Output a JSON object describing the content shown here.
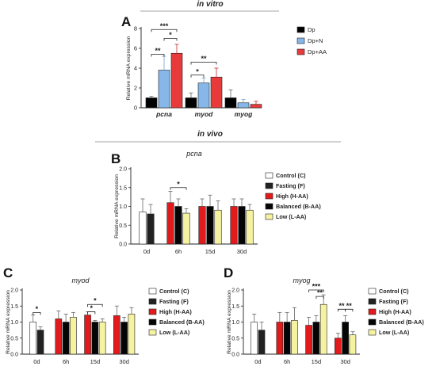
{
  "sections": {
    "in_vitro": "in vitro",
    "in_vivo": "in vivo"
  },
  "colors": {
    "Dp": "#000000",
    "Dp+N": "#86B7E8",
    "Dp+AA": "#E8393B",
    "Control (C)": "#FFFFFF",
    "Fasting (F)": "#222222",
    "High (H-AA)": "#E31A1C",
    "Balanced (B-AA)": "#050505",
    "Low (L-AA)": "#F6F3A0"
  },
  "chart_data": [
    {
      "panel": "A",
      "type": "bar",
      "title": "",
      "ylabel": "Relative mRNA expression",
      "xlabel": "",
      "categories": [
        "pcna",
        "myod",
        "myog"
      ],
      "ylim": [
        0,
        8
      ],
      "yticks": [
        0,
        2,
        4,
        6,
        8
      ],
      "legend_position": "right",
      "series": [
        {
          "name": "Dp",
          "values": [
            1.0,
            1.0,
            1.0
          ],
          "errors": [
            0.15,
            0.5,
            0.8
          ]
        },
        {
          "name": "Dp+N",
          "values": [
            3.8,
            2.5,
            0.5
          ],
          "errors": [
            1.4,
            0.5,
            0.35
          ]
        },
        {
          "name": "Dp+AA",
          "values": [
            5.5,
            3.1,
            0.35
          ],
          "errors": [
            0.9,
            0.9,
            0.3
          ]
        }
      ],
      "significance": [
        {
          "label": "***",
          "cat": 0,
          "from": 0,
          "to": 2,
          "level": 7.9
        },
        {
          "label": "*",
          "cat": 0,
          "from": 1,
          "to": 2,
          "level": 7.0
        },
        {
          "label": "**",
          "cat": 0,
          "from": 0,
          "to": 1,
          "level": 5.4
        },
        {
          "label": "**",
          "cat": 1,
          "from": 0,
          "to": 2,
          "level": 4.6
        },
        {
          "label": "*",
          "cat": 1,
          "from": 0,
          "to": 1,
          "level": 3.3
        }
      ]
    },
    {
      "panel": "B",
      "type": "bar",
      "title": "pcna",
      "ylabel": "Relative mRNA expression",
      "xlabel": "",
      "categories": [
        "0d",
        "6h",
        "15d",
        "30d"
      ],
      "ylim": [
        0,
        2.0
      ],
      "yticks": [
        0.0,
        0.5,
        1.0,
        1.5,
        2.0
      ],
      "legend_position": "right",
      "series": [
        {
          "name": "Control (C)",
          "values": [
            0.85,
            null,
            null,
            null
          ],
          "errors": [
            0.35,
            null,
            null,
            null
          ]
        },
        {
          "name": "Fasting (F)",
          "values": [
            0.8,
            null,
            null,
            null
          ],
          "errors": [
            0.25,
            null,
            null,
            null
          ]
        },
        {
          "name": "High (H-AA)",
          "values": [
            null,
            1.1,
            1.0,
            1.0
          ],
          "errors": [
            null,
            0.3,
            0.2,
            0.2
          ]
        },
        {
          "name": "Balanced (B-AA)",
          "values": [
            null,
            1.0,
            1.0,
            1.0
          ],
          "errors": [
            null,
            0.2,
            0.3,
            0.2
          ]
        },
        {
          "name": "Low (L-AA)",
          "values": [
            null,
            0.82,
            0.9,
            0.9
          ],
          "errors": [
            null,
            0.12,
            0.25,
            0.15
          ]
        }
      ],
      "significance": [
        {
          "label": "*",
          "cat": 1,
          "from": 2,
          "to": 4,
          "level": 1.5
        }
      ]
    },
    {
      "panel": "C",
      "type": "bar",
      "title": "myod",
      "ylabel": "Relative mRNA expression",
      "xlabel": "",
      "categories": [
        "0d",
        "6h",
        "15d",
        "30d"
      ],
      "ylim": [
        0,
        2.0
      ],
      "yticks": [
        0.0,
        0.5,
        1.0,
        1.5,
        2.0
      ],
      "legend_position": "right",
      "series": [
        {
          "name": "Control (C)",
          "values": [
            1.0,
            null,
            null,
            null
          ],
          "errors": [
            0.22,
            null,
            null,
            null
          ]
        },
        {
          "name": "Fasting (F)",
          "values": [
            0.75,
            null,
            null,
            null
          ],
          "errors": [
            0.1,
            null,
            null,
            null
          ]
        },
        {
          "name": "High (H-AA)",
          "values": [
            null,
            1.1,
            1.22,
            1.2
          ],
          "errors": [
            null,
            0.25,
            0.1,
            0.3
          ]
        },
        {
          "name": "Balanced (B-AA)",
          "values": [
            null,
            1.0,
            1.0,
            1.0
          ],
          "errors": [
            null,
            0.25,
            0.05,
            0.15
          ]
        },
        {
          "name": "Low (L-AA)",
          "values": [
            null,
            1.15,
            1.0,
            1.25
          ],
          "errors": [
            null,
            0.15,
            0.1,
            0.2
          ]
        }
      ],
      "significance": [
        {
          "label": "*",
          "cat": 0,
          "from": 0,
          "to": 1,
          "level": 1.3
        },
        {
          "label": "*",
          "cat": 2,
          "from": 2,
          "to": 4,
          "level": 1.55
        },
        {
          "label": "*",
          "cat": 2,
          "from": 2,
          "to": 3,
          "level": 1.32
        }
      ]
    },
    {
      "panel": "D",
      "type": "bar",
      "title": "myog",
      "ylabel": "Relative mRNA expression",
      "xlabel": "",
      "categories": [
        "0d",
        "6h",
        "15d",
        "30d"
      ],
      "ylim": [
        0,
        2.0
      ],
      "yticks": [
        0.0,
        0.5,
        1.0,
        1.5,
        2.0
      ],
      "legend_position": "right",
      "series": [
        {
          "name": "Control (C)",
          "values": [
            1.0,
            null,
            null,
            null
          ],
          "errors": [
            0.25,
            null,
            null,
            null
          ]
        },
        {
          "name": "Fasting (F)",
          "values": [
            0.75,
            null,
            null,
            null
          ],
          "errors": [
            0.25,
            null,
            null,
            null
          ]
        },
        {
          "name": "High (H-AA)",
          "values": [
            null,
            1.0,
            0.9,
            0.5
          ],
          "errors": [
            null,
            0.3,
            0.25,
            0.15
          ]
        },
        {
          "name": "Balanced (B-AA)",
          "values": [
            null,
            1.0,
            1.0,
            1.0
          ],
          "errors": [
            null,
            0.3,
            0.2,
            0.2
          ]
        },
        {
          "name": "Low (L-AA)",
          "values": [
            null,
            1.05,
            1.55,
            0.6
          ],
          "errors": [
            null,
            0.4,
            0.3,
            0.1
          ]
        }
      ],
      "significance": [
        {
          "label": "***",
          "cat": 2,
          "from": 2,
          "to": 4,
          "level": 2.0
        },
        {
          "label": "**",
          "cat": 2,
          "from": 3,
          "to": 4,
          "level": 1.8
        },
        {
          "label": "**",
          "cat": 3,
          "from": 2,
          "to": 3,
          "level": 1.4
        },
        {
          "label": "**",
          "cat": 3,
          "from": 3,
          "to": 4,
          "level": 1.4
        }
      ]
    }
  ]
}
